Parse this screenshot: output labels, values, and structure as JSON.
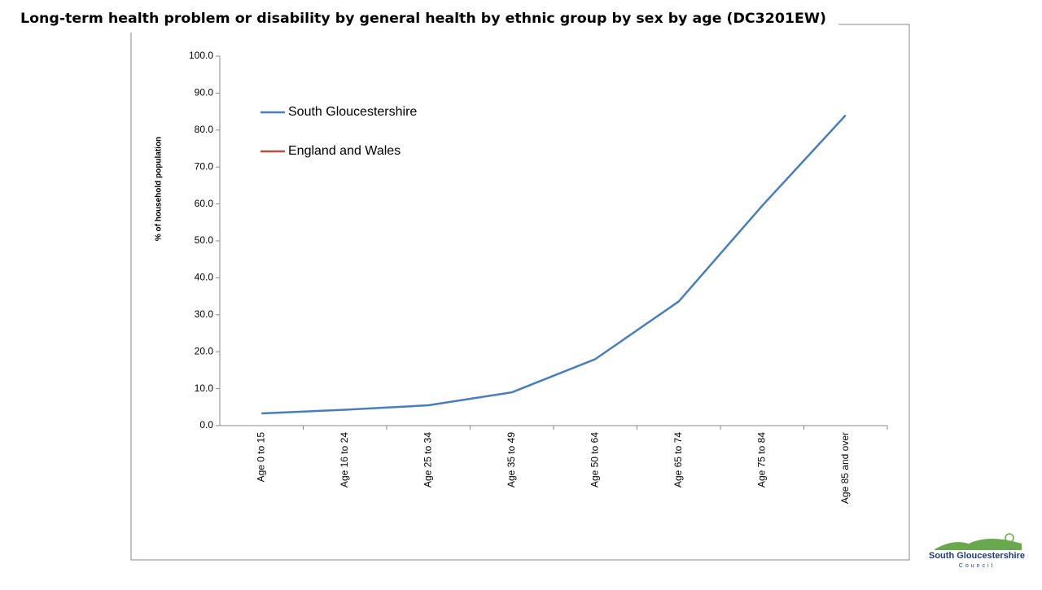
{
  "chart_data": {
    "type": "line",
    "title": "Long-term health problem or disability by general health by ethnic group by sex by age (DC3201EW)",
    "y_label": "% of household population",
    "categories": [
      "Age 0 to 15",
      "Age 16 to 24",
      "Age 25 to 34",
      "Age 35 to 49",
      "Age 50 to 64",
      "Age 65 to 74",
      "Age 75 to 84",
      "Age 85 and over"
    ],
    "series": [
      {
        "name": "South Gloucestershire",
        "color": "#4a7ebb",
        "values": [
          3.3,
          4.3,
          5.5,
          9.0,
          18.0,
          33.6,
          59.5,
          84.0
        ]
      },
      {
        "name": "England and Wales",
        "color": "#be4b48",
        "values": [
          null,
          null,
          null,
          null,
          null,
          null,
          null,
          null
        ]
      }
    ],
    "ylim": [
      0,
      100
    ],
    "yticks": [
      {
        "value": 0,
        "label": "0.0"
      },
      {
        "value": 10,
        "label": "10.0"
      },
      {
        "value": 20,
        "label": "20.0"
      },
      {
        "value": 30,
        "label": "30.0"
      },
      {
        "value": 40,
        "label": "40.0"
      },
      {
        "value": 50,
        "label": "50.0"
      },
      {
        "value": 60,
        "label": "60.0"
      },
      {
        "value": 70,
        "label": "70.0"
      },
      {
        "value": 80,
        "label": "80.0"
      },
      {
        "value": 90,
        "label": "90.0"
      },
      {
        "value": 100,
        "label": "100.0"
      }
    ],
    "grid": false,
    "legend": "upper left"
  },
  "logo": {
    "name": "South Gloucestershire",
    "subtitle": "Council"
  }
}
